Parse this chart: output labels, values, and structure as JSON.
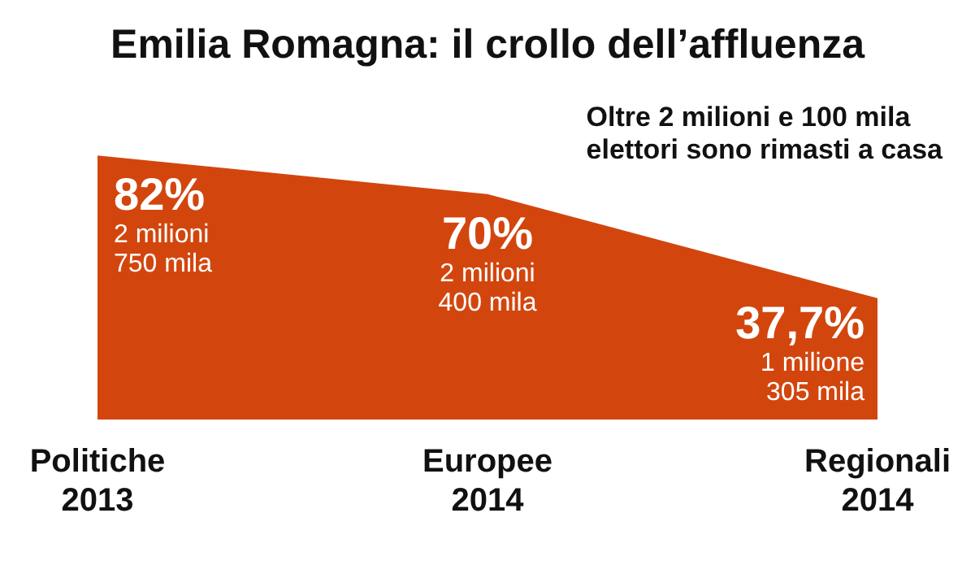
{
  "chart_data": {
    "type": "area",
    "title": "Emilia Romagna: il crollo dell’affluenza",
    "categories": [
      "Politiche\n2013",
      "Europee\n2014",
      "Regionali\n2014"
    ],
    "values": [
      82,
      70,
      37.7
    ],
    "color": "#d2460e",
    "value_labels": [
      "82%\n2 milioni\n750 mila",
      "70%\n2 milioni\n400 mila",
      "37,7%\n1 milione\n305 mila"
    ],
    "annotations": [
      "Oltre 2 milioni e 100 mila\nelettori sono rimasti a casa"
    ]
  }
}
